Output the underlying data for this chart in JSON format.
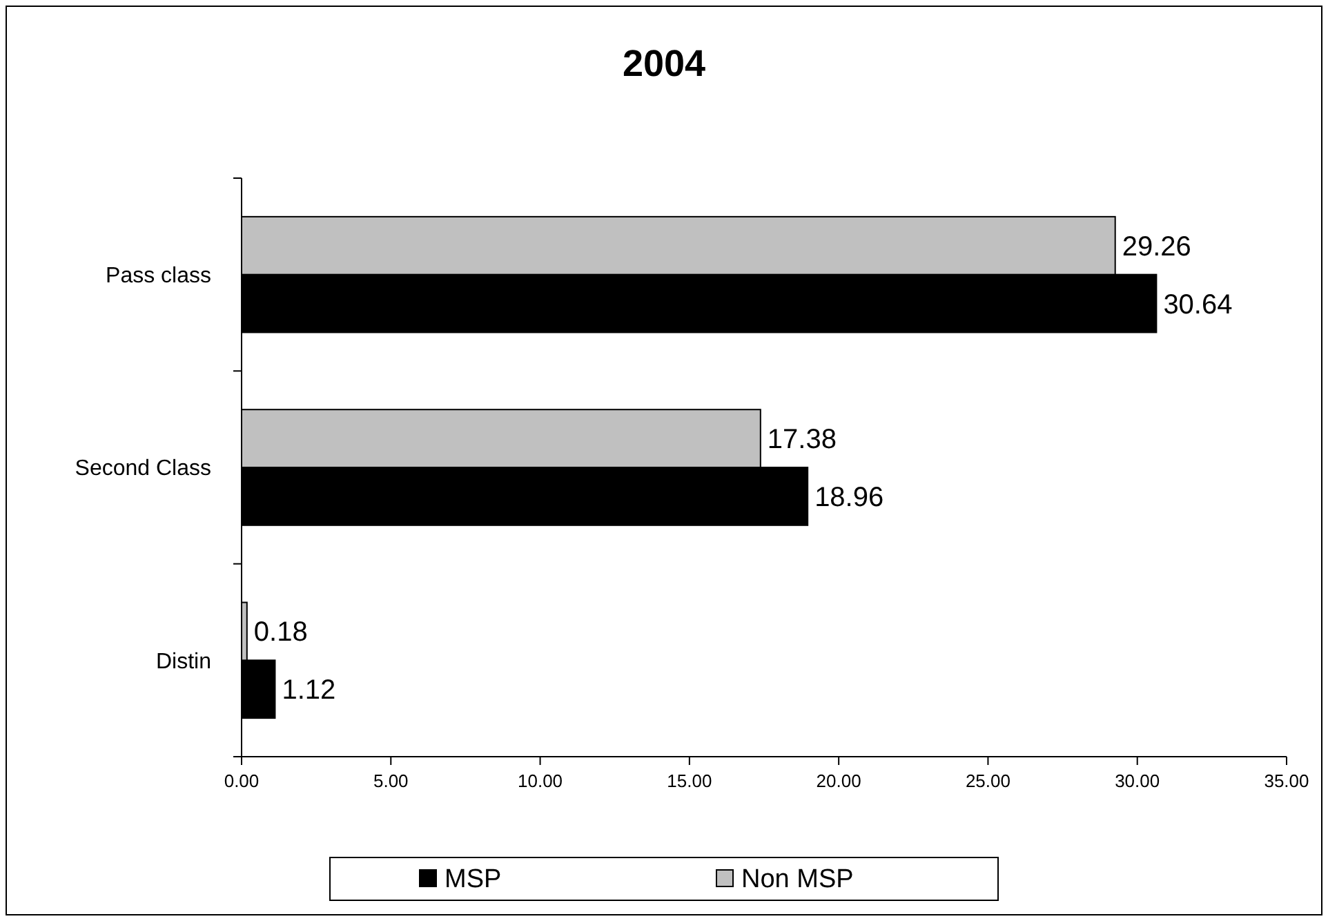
{
  "chart_data": {
    "type": "bar",
    "orientation": "horizontal",
    "title": "2004",
    "categories": [
      "Pass class",
      "Second Class",
      "Distin"
    ],
    "series": [
      {
        "name": "MSP",
        "color": "#000000",
        "values": [
          30.64,
          18.96,
          1.12
        ]
      },
      {
        "name": "Non MSP",
        "color": "#c0c0c0",
        "values": [
          29.26,
          17.38,
          0.18
        ]
      }
    ],
    "xlim": [
      0,
      35
    ],
    "xticks": [
      {
        "value": 0,
        "label": "0.00"
      },
      {
        "value": 5,
        "label": "5.00"
      },
      {
        "value": 10,
        "label": "10.00"
      },
      {
        "value": 15,
        "label": "15.00"
      },
      {
        "value": 20,
        "label": "20.00"
      },
      {
        "value": 25,
        "label": "25.00"
      },
      {
        "value": 30,
        "label": "30.00"
      },
      {
        "value": 35,
        "label": "35.00"
      }
    ],
    "data_labels": true,
    "grid": false,
    "legend": "bottom"
  }
}
